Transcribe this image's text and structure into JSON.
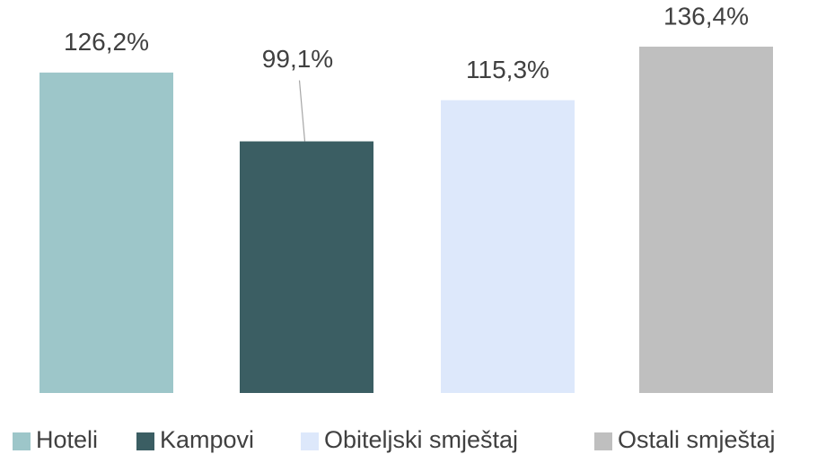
{
  "chart_data": {
    "type": "bar",
    "categories": [
      null
    ],
    "series": [
      {
        "name": "Hoteli",
        "color": "#9dc6c9",
        "values": [
          126.2
        ],
        "value_labels": [
          "126,2%"
        ]
      },
      {
        "name": "Kampovi",
        "color": "#3b5e63",
        "values": [
          99.1
        ],
        "value_labels": [
          "99,1%"
        ]
      },
      {
        "name": "Obiteljski smještaj",
        "color": "#dde8fb",
        "values": [
          115.3
        ],
        "value_labels": [
          "115,3%"
        ]
      },
      {
        "name": "Ostali smještaj",
        "color": "#bfbfbf",
        "values": [
          136.4
        ],
        "value_labels": [
          "136,4%"
        ]
      }
    ]
  }
}
